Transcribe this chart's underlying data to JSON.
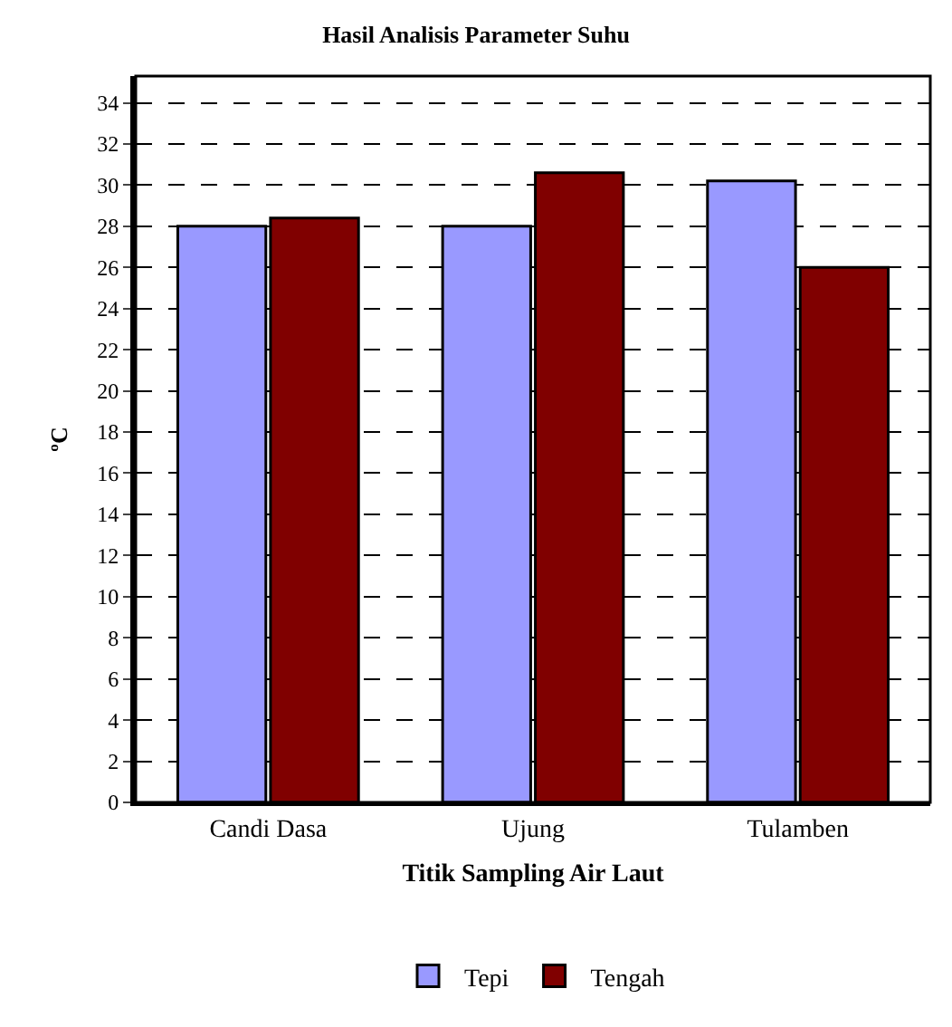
{
  "chart_data": {
    "type": "bar",
    "title": "Hasil Analisis Parameter Suhu",
    "xlabel": "Titik Sampling Air Laut",
    "ylabel": "ºC",
    "categories": [
      "Candi Dasa",
      "Ujung",
      "Tulamben"
    ],
    "series": [
      {
        "name": "Tepi",
        "color": "#9999ff",
        "values": [
          28,
          28,
          30.2
        ]
      },
      {
        "name": "Tengah",
        "color": "#800000",
        "values": [
          28.4,
          30.6,
          26
        ]
      }
    ],
    "ylim": [
      0,
      35.3
    ],
    "yticks": [
      0,
      2,
      4,
      6,
      8,
      10,
      12,
      14,
      16,
      18,
      20,
      22,
      24,
      26,
      28,
      30,
      32,
      34
    ],
    "grid": "y",
    "legend": "bottom"
  }
}
